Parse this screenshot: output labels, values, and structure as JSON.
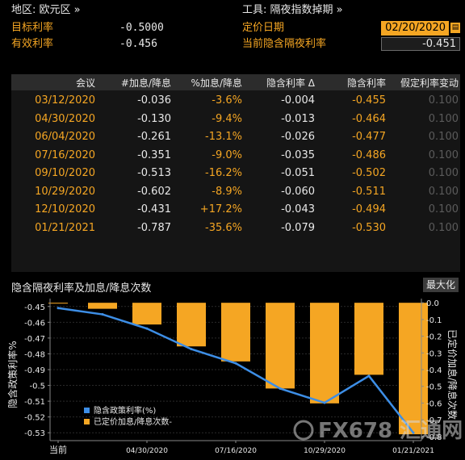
{
  "header": {
    "region_label": "地区: 欧元区 »",
    "tool_label": "工具: 隔夜指数掉期 »",
    "target_rate_label": "目标利率",
    "target_rate_value": "-0.5000",
    "effective_rate_label": "有效利率",
    "effective_rate_value": "-0.456",
    "pricing_date_label": "定价日期",
    "pricing_date_value": "02/20/2020",
    "implied_rate_label": "当前隐含隔夜利率",
    "implied_rate_value": "-0.451"
  },
  "table": {
    "columns": [
      "会议",
      "#加息/降息",
      "%加息/降息",
      "隐含利率 Δ",
      "隐含利率",
      "假定利率变动"
    ],
    "rows": [
      {
        "date": "03/12/2020",
        "num": "-0.036",
        "pct": "-3.6%",
        "delta": "-0.004",
        "rate": "-0.455",
        "assumed": "0.100"
      },
      {
        "date": "04/30/2020",
        "num": "-0.130",
        "pct": "-9.4%",
        "delta": "-0.013",
        "rate": "-0.464",
        "assumed": "0.100"
      },
      {
        "date": "06/04/2020",
        "num": "-0.261",
        "pct": "-13.1%",
        "delta": "-0.026",
        "rate": "-0.477",
        "assumed": "0.100"
      },
      {
        "date": "07/16/2020",
        "num": "-0.351",
        "pct": "-9.0%",
        "delta": "-0.035",
        "rate": "-0.486",
        "assumed": "0.100"
      },
      {
        "date": "09/10/2020",
        "num": "-0.513",
        "pct": "-16.2%",
        "delta": "-0.051",
        "rate": "-0.502",
        "assumed": "0.100"
      },
      {
        "date": "10/29/2020",
        "num": "-0.602",
        "pct": "-8.9%",
        "delta": "-0.060",
        "rate": "-0.511",
        "assumed": "0.100"
      },
      {
        "date": "12/10/2020",
        "num": "-0.431",
        "pct": "+17.2%",
        "delta": "-0.043",
        "rate": "-0.494",
        "assumed": "0.100"
      },
      {
        "date": "01/21/2021",
        "num": "-0.787",
        "pct": "-35.6%",
        "delta": "-0.079",
        "rate": "-0.530",
        "assumed": "0.100"
      }
    ]
  },
  "chart": {
    "title": "隐含隔夜利率及加息/降息次数",
    "maximize_label": "最大化",
    "watermark": "FX678 汇通网"
  },
  "chart_data": {
    "type": "bar",
    "categories": [
      "当前",
      "03/12/2020",
      "04/30/2020",
      "06/04/2020",
      "07/16/2020",
      "09/10/2020",
      "10/29/2020",
      "12/10/2020",
      "01/21/2021"
    ],
    "x_tick_labels": [
      "当前",
      "04/30/2020",
      "07/16/2020",
      "10/29/2020",
      "01/21/2021"
    ],
    "series": [
      {
        "name": "隐含政策利率(%)",
        "type": "line",
        "axis": "left",
        "color": "#3d8ee6",
        "values": [
          -0.451,
          -0.455,
          -0.464,
          -0.477,
          -0.486,
          -0.502,
          -0.511,
          -0.494,
          -0.53
        ]
      },
      {
        "name": "已定价加息/降息次数-",
        "type": "bar",
        "axis": "right",
        "color": "#f5a623",
        "values": [
          -0.005,
          -0.036,
          -0.13,
          -0.261,
          -0.351,
          -0.513,
          -0.602,
          -0.431,
          -0.787
        ]
      }
    ],
    "ylabel_left": "隐含政策利率%",
    "ylabel_right": "已定价加息/降息次数",
    "ylim_left": [
      -0.535,
      -0.445
    ],
    "yticks_left": [
      "-0.45",
      "-0.46",
      "-0.47",
      "-0.48",
      "-0.49",
      "-0.5",
      "-0.51",
      "-0.52",
      "-0.53"
    ],
    "ylim_right": [
      -0.825,
      0.025
    ],
    "yticks_right": [
      "0.0",
      "-0.1",
      "-0.2",
      "-0.3",
      "-0.4",
      "-0.5",
      "-0.6",
      "-0.7",
      "-0.8"
    ],
    "legend_position": "bottom-left"
  }
}
